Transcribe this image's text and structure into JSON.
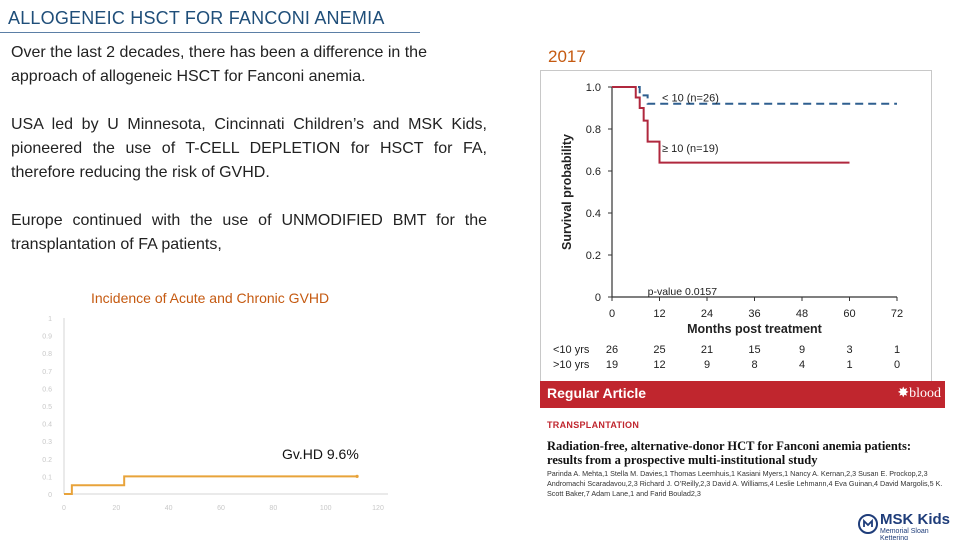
{
  "slide": {
    "title": "ALLOGENEIC HSCT FOR FANCONI ANEMIA",
    "paragraphs": [
      "Over the last 2 decades, there has been a difference in the approach of allogeneic HSCT for Fanconi anemia.",
      "USA led by U Minnesota, Cincinnati Children’s and MSK Kids, pioneered the use of T-CELL DEPLETION for HSCT for FA, therefore reducing the risk of GVHD.",
      "Europe continued with the use of UNMODIFIED BMT for the transplantation of FA patients,"
    ],
    "year": "2017"
  },
  "chart_data": [
    {
      "type": "line",
      "title": "Incidence of Acute and Chronic GVHD",
      "annotation": "Gv.HD  9.6%",
      "x_ticks": [
        "0",
        "20",
        "40",
        "60",
        "80",
        "100",
        "120"
      ],
      "y_ticks": [
        "0",
        "0.1",
        "0.2",
        "0.3",
        "0.4",
        "0.5",
        "0.6",
        "0.7",
        "0.8",
        "0.9",
        "1"
      ],
      "xlim": [
        0,
        120
      ],
      "ylim": [
        0,
        1
      ],
      "series": [
        {
          "color": "#e8a33a",
          "x": [
            0,
            3,
            3,
            23,
            23,
            112
          ],
          "y": [
            0,
            0,
            0.05,
            0.05,
            0.1,
            0.1
          ]
        }
      ]
    },
    {
      "type": "line",
      "xlabel": "Months post treatment",
      "ylabel": "Survival probability",
      "x_ticks": [
        "0",
        "12",
        "24",
        "36",
        "48",
        "60",
        "72"
      ],
      "y_ticks": [
        "0",
        "0.2",
        "0.4",
        "0.6",
        "0.8",
        "1.0"
      ],
      "xlim": [
        0,
        72
      ],
      "ylim": [
        0,
        1
      ],
      "pvalue_label": "p-value 0.0157",
      "series": [
        {
          "name": "< 10 (n=26)",
          "color": "#2e5f8f",
          "dashed": true,
          "x": [
            0,
            7,
            7,
            9,
            9,
            48,
            48,
            72
          ],
          "y": [
            1,
            1,
            0.96,
            0.96,
            0.92,
            0.92,
            0.92,
            0.92
          ]
        },
        {
          "name": "≥ 10 (n=19)",
          "color": "#b0283e",
          "dashed": false,
          "x": [
            0,
            6,
            6,
            7,
            7,
            8,
            8,
            9,
            9,
            12,
            12,
            24,
            24,
            60
          ],
          "y": [
            1,
            1,
            0.95,
            0.95,
            0.9,
            0.9,
            0.84,
            0.84,
            0.74,
            0.74,
            0.64,
            0.64,
            0.64,
            0.64
          ]
        }
      ],
      "risk_table": {
        "rows": [
          {
            "label": "<10 yrs",
            "values": [
              "26",
              "25",
              "21",
              "15",
              "9",
              "3",
              "1"
            ]
          },
          {
            "label": ">10 yrs",
            "values": [
              "19",
              "12",
              "9",
              "8",
              "4",
              "1",
              "0"
            ]
          }
        ]
      }
    }
  ],
  "article": {
    "banner": "Regular Article",
    "journal_logo": "blood",
    "section": "TRANSPLANTATION",
    "title": "Radiation-free, alternative-donor HCT for Fanconi anemia patients: results from a prospective multi-institutional study",
    "authors": "Parinda A. Mehta,1 Stella M. Davies,1 Thomas Leemhuis,1 Kasiani Myers,1 Nancy A. Kernan,2,3 Susan E. Prockop,2,3 Andromachi Scaradavou,2,3 Richard J. O’Reilly,2,3 David A. Williams,4 Leslie Lehmann,4 Eva Guinan,4 David Margolis,5 K. Scott Baker,7 Adam Lane,1 and Farid Boulad2,3"
  },
  "logo": {
    "name": "MSK Kids",
    "subtitle": "Memorial Sloan Kettering"
  },
  "colors": {
    "title": "#1f4e79",
    "accent_orange": "#c55a11",
    "article_red": "#c0262e",
    "msk_blue": "#1f3d7a"
  }
}
